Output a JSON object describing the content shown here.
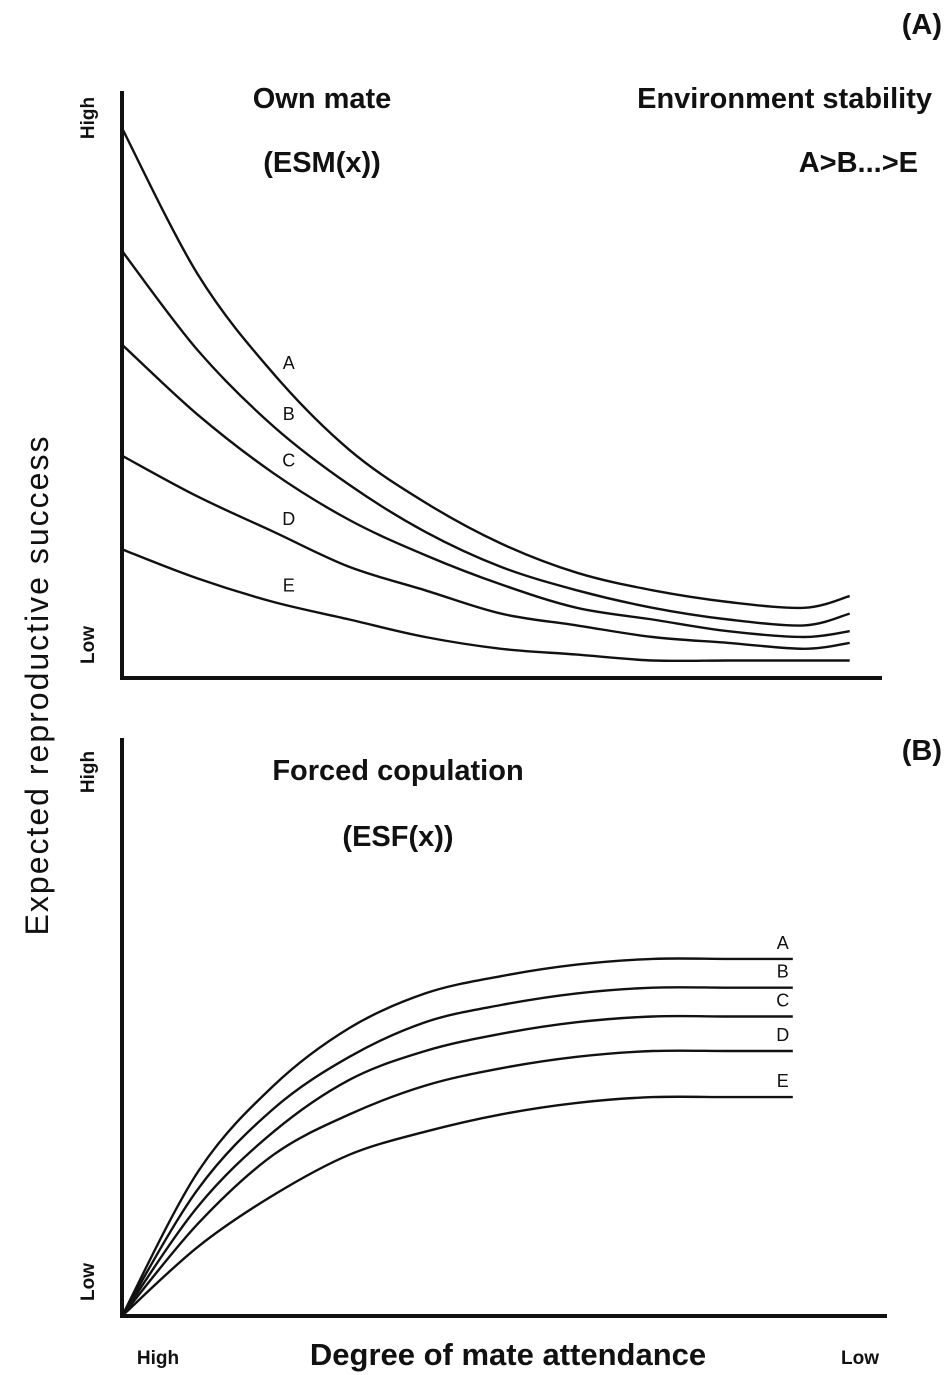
{
  "figure": {
    "ylabel": "Expected reproductive success",
    "xlabel": "Degree of mate attendance",
    "x_tick_left": "High",
    "x_tick_right": "Low"
  },
  "chart_data": [
    {
      "type": "line",
      "panel": "(A)",
      "title": "Own mate",
      "subtitle": "(ESM(x))",
      "annotation": {
        "heading": "Environment stability",
        "ordering": "A>B...>E"
      },
      "y_tick_high": "High",
      "y_tick_low": "Low",
      "xlim": [
        0,
        1
      ],
      "ylim": [
        0,
        1
      ],
      "x": [
        0.0,
        0.1,
        0.2,
        0.3,
        0.4,
        0.5,
        0.6,
        0.7,
        0.8,
        0.9,
        0.96
      ],
      "series": [
        {
          "name": "A",
          "values": [
            0.94,
            0.69,
            0.52,
            0.39,
            0.3,
            0.23,
            0.18,
            0.15,
            0.13,
            0.12,
            0.14
          ]
        },
        {
          "name": "B",
          "values": [
            0.73,
            0.56,
            0.43,
            0.33,
            0.25,
            0.19,
            0.15,
            0.12,
            0.1,
            0.09,
            0.11
          ]
        },
        {
          "name": "C",
          "values": [
            0.57,
            0.45,
            0.35,
            0.27,
            0.21,
            0.16,
            0.12,
            0.1,
            0.08,
            0.07,
            0.08
          ]
        },
        {
          "name": "D",
          "values": [
            0.38,
            0.31,
            0.25,
            0.19,
            0.15,
            0.11,
            0.09,
            0.07,
            0.06,
            0.05,
            0.06
          ]
        },
        {
          "name": "E",
          "values": [
            0.22,
            0.17,
            0.13,
            0.1,
            0.07,
            0.05,
            0.04,
            0.03,
            0.03,
            0.03,
            0.03
          ]
        }
      ]
    },
    {
      "type": "line",
      "panel": "(B)",
      "title": "Forced copulation",
      "subtitle": "(ESF(x))",
      "y_tick_high": "High",
      "y_tick_low": "Low",
      "xlim": [
        0,
        1
      ],
      "ylim": [
        0,
        1
      ],
      "x": [
        0.0,
        0.1,
        0.2,
        0.3,
        0.4,
        0.5,
        0.6,
        0.7,
        0.8,
        0.885
      ],
      "series": [
        {
          "name": "A",
          "values": [
            0.0,
            0.25,
            0.4,
            0.5,
            0.56,
            0.59,
            0.61,
            0.62,
            0.62,
            0.62
          ]
        },
        {
          "name": "B",
          "values": [
            0.0,
            0.22,
            0.36,
            0.45,
            0.51,
            0.54,
            0.56,
            0.57,
            0.57,
            0.57
          ]
        },
        {
          "name": "C",
          "values": [
            0.0,
            0.19,
            0.32,
            0.41,
            0.46,
            0.49,
            0.51,
            0.52,
            0.52,
            0.52
          ]
        },
        {
          "name": "D",
          "values": [
            0.0,
            0.16,
            0.28,
            0.35,
            0.4,
            0.43,
            0.45,
            0.46,
            0.46,
            0.46
          ]
        },
        {
          "name": "E",
          "values": [
            0.0,
            0.12,
            0.21,
            0.28,
            0.32,
            0.35,
            0.37,
            0.38,
            0.38,
            0.38
          ]
        }
      ]
    }
  ]
}
